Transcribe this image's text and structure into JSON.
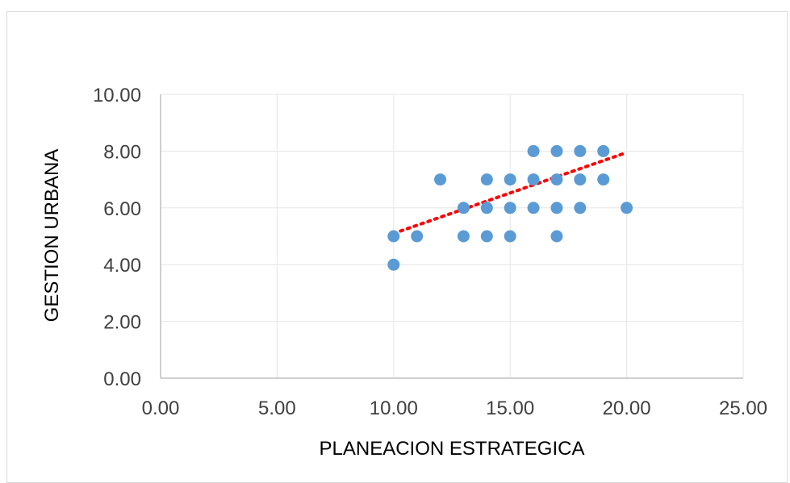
{
  "chart_data": {
    "type": "scatter",
    "title": "",
    "xlabel": "PLANEACION ESTRATEGICA",
    "ylabel": "GESTION URBANA",
    "xlim": [
      0,
      25
    ],
    "ylim": [
      0,
      10
    ],
    "xticks": [
      0,
      5,
      10,
      15,
      20,
      25
    ],
    "yticks": [
      0,
      2,
      4,
      6,
      8,
      10
    ],
    "xtick_labels": [
      "0.00",
      "5.00",
      "10.00",
      "15.00",
      "20.00",
      "25.00"
    ],
    "ytick_labels": [
      "0.00",
      "2.00",
      "4.00",
      "6.00",
      "8.00",
      "10.00"
    ],
    "grid": true,
    "legend": "none",
    "points": [
      {
        "x": 10,
        "y": 4
      },
      {
        "x": 10,
        "y": 5
      },
      {
        "x": 11,
        "y": 5
      },
      {
        "x": 12,
        "y": 7
      },
      {
        "x": 13,
        "y": 5
      },
      {
        "x": 13,
        "y": 6
      },
      {
        "x": 14,
        "y": 5
      },
      {
        "x": 14,
        "y": 6
      },
      {
        "x": 14,
        "y": 7
      },
      {
        "x": 15,
        "y": 5
      },
      {
        "x": 15,
        "y": 6
      },
      {
        "x": 15,
        "y": 7
      },
      {
        "x": 16,
        "y": 6
      },
      {
        "x": 16,
        "y": 7
      },
      {
        "x": 16,
        "y": 8
      },
      {
        "x": 17,
        "y": 5
      },
      {
        "x": 17,
        "y": 6
      },
      {
        "x": 17,
        "y": 7
      },
      {
        "x": 17,
        "y": 8
      },
      {
        "x": 18,
        "y": 6
      },
      {
        "x": 18,
        "y": 7
      },
      {
        "x": 18,
        "y": 8
      },
      {
        "x": 19,
        "y": 7
      },
      {
        "x": 19,
        "y": 8
      },
      {
        "x": 20,
        "y": 6
      }
    ],
    "trendline": {
      "type": "linear",
      "x": [
        10,
        20
      ],
      "y": [
        5.1,
        7.95
      ],
      "style": "dotted"
    },
    "colors": {
      "points": "#5b9bd5",
      "trendline": "#ff0000",
      "grid": "#e6e6e6",
      "axis": "#bfbfbf"
    }
  }
}
